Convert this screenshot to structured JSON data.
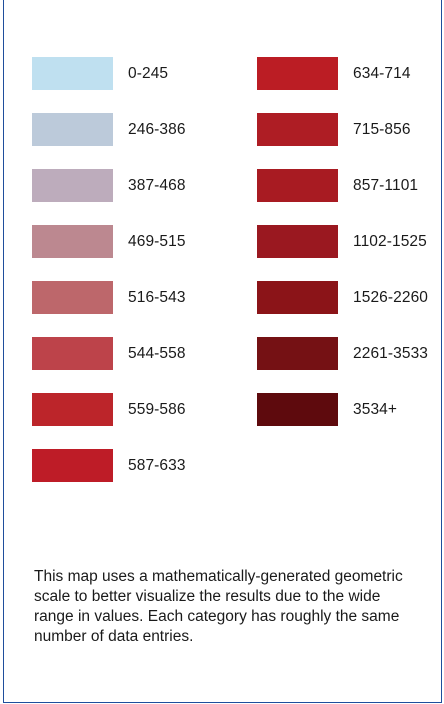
{
  "legend": {
    "left_items": [
      {
        "label": "0-245",
        "color": "#bfe0f0"
      },
      {
        "label": "246-386",
        "color": "#bccada"
      },
      {
        "label": "387-468",
        "color": "#bdacbc"
      },
      {
        "label": "469-515",
        "color": "#bc8890"
      },
      {
        "label": "516-543",
        "color": "#bd676b"
      },
      {
        "label": "544-558",
        "color": "#bd434a"
      },
      {
        "label": "559-586",
        "color": "#bc252a"
      },
      {
        "label": "587-633",
        "color": "#be1c27"
      }
    ],
    "right_items": [
      {
        "label": "634-714",
        "color": "#bb1d24"
      },
      {
        "label": "715-856",
        "color": "#ae1d24"
      },
      {
        "label": "857-1101",
        "color": "#a81b22"
      },
      {
        "label": "1102-1525",
        "color": "#9a1820"
      },
      {
        "label": "1526-2260",
        "color": "#8b1418"
      },
      {
        "label": "2261-3533",
        "color": "#751114"
      },
      {
        "label": "3534+",
        "color": "#5e0a0d"
      }
    ]
  },
  "note": "This map uses a mathematically-generated geometric scale to better visualize the results due to the wide range in values.  Each category has roughly the same number of data entries."
}
